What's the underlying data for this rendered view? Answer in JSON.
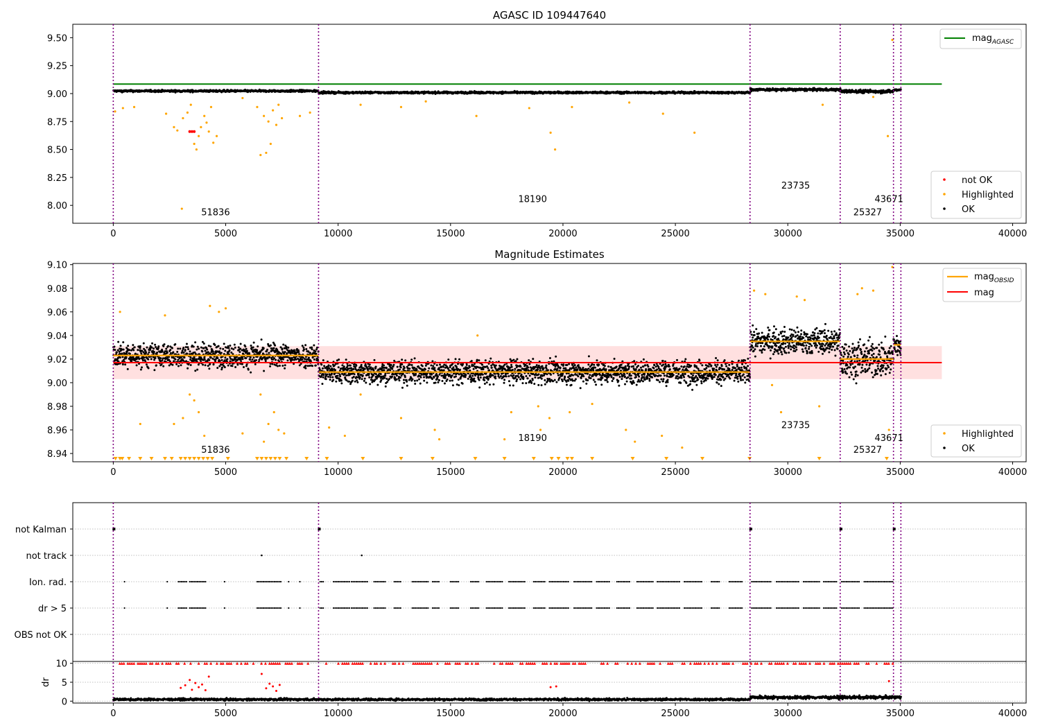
{
  "chart_data": [
    {
      "type": "scatter",
      "title": "AGASC ID 109447640",
      "xlabel": "",
      "ylabel": "",
      "xlim": [
        -1800,
        40600
      ],
      "ylim": [
        7.84,
        9.62
      ],
      "xticks": [
        0,
        5000,
        10000,
        15000,
        20000,
        25000,
        30000,
        35000,
        40000
      ],
      "yticks": [
        8.0,
        8.25,
        8.5,
        8.75,
        9.0,
        9.25,
        9.5
      ],
      "ytick_labels": [
        "8.00",
        "8.25",
        "8.50",
        "8.75",
        "9.00",
        "9.25",
        "9.50"
      ],
      "obsid_boundaries": [
        0,
        9130,
        28320,
        32330,
        34700,
        35030
      ],
      "obsid_labels": [
        {
          "text": "51836",
          "x": 4550,
          "y": 7.91
        },
        {
          "text": "18190",
          "x": 18650,
          "y": 8.03
        },
        {
          "text": "23735",
          "x": 30350,
          "y": 8.15
        },
        {
          "text": "25327",
          "x": 33550,
          "y": 7.91
        },
        {
          "text": "43671",
          "x": 34500,
          "y": 8.03
        }
      ],
      "lines": [
        {
          "name": "mag_AGASC",
          "color": "#008000",
          "y": 9.085,
          "x_range": [
            0,
            36850
          ]
        }
      ],
      "series": [
        {
          "name": "OK",
          "color": "#000000",
          "segments": [
            {
              "x": [
                0,
                9130
              ],
              "mean": 9.023,
              "spread": 0.012
            },
            {
              "x": [
                9130,
                28320
              ],
              "mean": 9.009,
              "spread": 0.012
            },
            {
              "x": [
                28320,
                32330
              ],
              "mean": 9.035,
              "spread": 0.015
            },
            {
              "x": [
                32330,
                34700
              ],
              "mean": 9.02,
              "spread": 0.02
            },
            {
              "x": [
                34700,
                35030
              ],
              "mean": 9.032,
              "spread": 0.015
            }
          ]
        },
        {
          "name": "Highlighted",
          "color": "#ffa500",
          "points": [
            [
              80,
              8.84
            ],
            [
              430,
              8.87
            ],
            [
              930,
              8.88
            ],
            [
              2350,
              8.82
            ],
            [
              2700,
              8.7
            ],
            [
              2850,
              8.67
            ],
            [
              3050,
              7.97
            ],
            [
              3100,
              8.78
            ],
            [
              3300,
              8.83
            ],
            [
              3450,
              8.9
            ],
            [
              3600,
              8.55
            ],
            [
              3700,
              8.5
            ],
            [
              3800,
              8.62
            ],
            [
              3900,
              8.7
            ],
            [
              4050,
              8.8
            ],
            [
              4150,
              8.74
            ],
            [
              4250,
              8.66
            ],
            [
              4350,
              8.88
            ],
            [
              4450,
              8.56
            ],
            [
              4600,
              8.62
            ],
            [
              5750,
              8.96
            ],
            [
              6400,
              8.88
            ],
            [
              6550,
              8.45
            ],
            [
              6700,
              8.8
            ],
            [
              6800,
              8.47
            ],
            [
              6900,
              8.75
            ],
            [
              7000,
              8.55
            ],
            [
              7100,
              8.85
            ],
            [
              7250,
              8.72
            ],
            [
              7350,
              8.9
            ],
            [
              7500,
              8.78
            ],
            [
              8300,
              8.8
            ],
            [
              8750,
              8.83
            ],
            [
              11000,
              8.9
            ],
            [
              12800,
              8.88
            ],
            [
              13900,
              8.93
            ],
            [
              16150,
              8.8
            ],
            [
              18500,
              8.87
            ],
            [
              19450,
              8.65
            ],
            [
              19650,
              8.5
            ],
            [
              20400,
              8.88
            ],
            [
              22950,
              8.92
            ],
            [
              24450,
              8.82
            ],
            [
              25850,
              8.65
            ],
            [
              31550,
              8.9
            ],
            [
              33800,
              8.97
            ],
            [
              34450,
              8.62
            ],
            [
              34650,
              9.48
            ]
          ]
        },
        {
          "name": "not OK",
          "color": "#ff0000",
          "points": [
            [
              3400,
              8.66
            ],
            [
              3500,
              8.66
            ],
            [
              3600,
              8.66
            ]
          ]
        }
      ],
      "legend": {
        "upper_entries": [
          "mag_AGASC"
        ],
        "lower_entries": [
          "not OK",
          "Highlighted",
          "OK"
        ],
        "upper_loc": "upper right",
        "lower_loc": "lower right"
      }
    },
    {
      "type": "scatter",
      "title": "Magnitude Estimates",
      "xlabel": "",
      "ylabel": "",
      "xlim": [
        -1800,
        40600
      ],
      "ylim": [
        8.933,
        9.101
      ],
      "xticks": [
        0,
        5000,
        10000,
        15000,
        20000,
        25000,
        30000,
        35000,
        40000
      ],
      "yticks": [
        8.94,
        8.96,
        8.98,
        9.0,
        9.02,
        9.04,
        9.06,
        9.08,
        9.1
      ],
      "ytick_labels": [
        "8.94",
        "8.96",
        "8.98",
        "9.00",
        "9.02",
        "9.04",
        "9.06",
        "9.08",
        "9.10"
      ],
      "obsid_boundaries": [
        0,
        9130,
        28320,
        32330,
        34700,
        35030
      ],
      "obsid_labels": [
        {
          "text": "51836",
          "x": 4550,
          "y": 8.9405
        },
        {
          "text": "18190",
          "x": 18650,
          "y": 8.9505
        },
        {
          "text": "23735",
          "x": 30350,
          "y": 8.9615
        },
        {
          "text": "25327",
          "x": 33550,
          "y": 8.9405
        },
        {
          "text": "43671",
          "x": 34500,
          "y": 8.9505
        }
      ],
      "mag": {
        "value": 9.017,
        "band": [
          9.003,
          9.031
        ],
        "x_range": [
          0,
          36850
        ],
        "color": "#ff0000"
      },
      "mag_obsid": [
        {
          "x": [
            0,
            9130
          ],
          "value": 9.023
        },
        {
          "x": [
            9130,
            28320
          ],
          "value": 9.009
        },
        {
          "x": [
            28320,
            32330
          ],
          "value": 9.035
        },
        {
          "x": [
            32330,
            34700
          ],
          "value": 9.02
        },
        {
          "x": [
            34700,
            35030
          ],
          "value": 9.032
        }
      ],
      "series": [
        {
          "name": "OK",
          "color": "#000000",
          "segments": [
            {
              "x": [
                0,
                9130
              ],
              "mean": 9.023,
              "spread": 0.013
            },
            {
              "x": [
                9130,
                28320
              ],
              "mean": 9.009,
              "spread": 0.013
            },
            {
              "x": [
                28320,
                32330
              ],
              "mean": 9.035,
              "spread": 0.014
            },
            {
              "x": [
                32330,
                34700
              ],
              "mean": 9.02,
              "spread": 0.02
            },
            {
              "x": [
                34700,
                35030
              ],
              "mean": 9.032,
              "spread": 0.014
            }
          ]
        },
        {
          "name": "Highlighted",
          "color": "#ffa500",
          "points": [
            [
              300,
              9.06
            ],
            [
              1200,
              8.965
            ],
            [
              2300,
              9.057
            ],
            [
              2700,
              8.965
            ],
            [
              3100,
              8.97
            ],
            [
              3400,
              8.99
            ],
            [
              3600,
              8.985
            ],
            [
              3800,
              8.975
            ],
            [
              4050,
              8.955
            ],
            [
              4300,
              9.065
            ],
            [
              4700,
              9.06
            ],
            [
              5000,
              9.063
            ],
            [
              5750,
              8.957
            ],
            [
              6550,
              8.99
            ],
            [
              6700,
              8.95
            ],
            [
              6900,
              8.965
            ],
            [
              7150,
              8.975
            ],
            [
              7350,
              8.96
            ],
            [
              7600,
              8.957
            ],
            [
              9600,
              8.962
            ],
            [
              10300,
              8.955
            ],
            [
              11000,
              8.99
            ],
            [
              12800,
              8.97
            ],
            [
              14300,
              8.96
            ],
            [
              14500,
              8.952
            ],
            [
              16200,
              9.04
            ],
            [
              17400,
              8.952
            ],
            [
              17700,
              8.975
            ],
            [
              18900,
              8.98
            ],
            [
              19000,
              8.96
            ],
            [
              19400,
              8.97
            ],
            [
              20300,
              8.975
            ],
            [
              21300,
              8.982
            ],
            [
              22800,
              8.96
            ],
            [
              23200,
              8.95
            ],
            [
              24400,
              8.955
            ],
            [
              25300,
              8.945
            ],
            [
              28500,
              9.078
            ],
            [
              29000,
              9.075
            ],
            [
              29300,
              8.998
            ],
            [
              29700,
              8.975
            ],
            [
              30400,
              9.073
            ],
            [
              30750,
              9.07
            ],
            [
              31400,
              8.98
            ],
            [
              33100,
              9.075
            ],
            [
              33300,
              9.08
            ],
            [
              33800,
              9.078
            ],
            [
              34650,
              9.098
            ],
            [
              34500,
              8.96
            ]
          ]
        }
      ],
      "markers_at_bottom_x": [
        100,
        300,
        400,
        700,
        1200,
        1700,
        2300,
        2600,
        3000,
        3200,
        3400,
        3600,
        3800,
        4000,
        4200,
        4400,
        5100,
        6400,
        6600,
        6800,
        7000,
        7200,
        7400,
        7700,
        8600,
        9500,
        11100,
        12800,
        14200,
        16100,
        17400,
        18700,
        19500,
        19800,
        20200,
        20400,
        21300,
        23100,
        24600,
        26200,
        28300,
        31400,
        34400
      ],
      "legend": {
        "upper_entries": [
          "mag_OBSID",
          "mag"
        ],
        "lower_entries": [
          "Highlighted",
          "OK"
        ],
        "upper_loc": "upper right",
        "lower_loc": "lower right"
      }
    },
    {
      "type": "scatter",
      "title": "",
      "xlabel": "",
      "ylabel": "",
      "xlim": [
        -1800,
        40600
      ],
      "categories": [
        "not Kalman",
        "not track",
        "Ion. rad.",
        "dr > 5",
        "OBS not OK"
      ],
      "obsid_boundaries": [
        0,
        9130,
        28320,
        32330,
        34700,
        35030
      ],
      "flags": {
        "not Kalman": [
          0,
          9130,
          28320,
          32330,
          34700
        ],
        "not track": [
          6600,
          11050
        ],
        "Ion. rad.": "clustered events 500–34700",
        "dr > 5": "clustered events 500–34700",
        "OBS not OK": []
      }
    },
    {
      "type": "scatter",
      "title": "",
      "xlabel": "",
      "ylabel": "dr",
      "xlim": [
        -1800,
        40600
      ],
      "ylim": [
        -0.5,
        10.5
      ],
      "xticks": [
        0,
        5000,
        10000,
        15000,
        20000,
        25000,
        30000,
        35000,
        40000
      ],
      "yticks": [
        0,
        5,
        10
      ],
      "series": [
        {
          "name": "OK",
          "color": "#000000",
          "segments": [
            {
              "x": [
                0,
                28320
              ],
              "mean": 0.45,
              "spread": 0.35
            },
            {
              "x": [
                28320,
                35030
              ],
              "mean": 1.0,
              "spread": 0.5
            }
          ]
        },
        {
          "name": "not OK",
          "color": "#ff0000",
          "cap": 10,
          "points": [
            [
              3000,
              3.5
            ],
            [
              3200,
              4.2
            ],
            [
              3400,
              5.6
            ],
            [
              3500,
              3.0
            ],
            [
              3650,
              4.8
            ],
            [
              3800,
              3.7
            ],
            [
              3950,
              4.4
            ],
            [
              4100,
              2.9
            ],
            [
              4250,
              6.5
            ],
            [
              6600,
              7.2
            ],
            [
              6800,
              3.4
            ],
            [
              6950,
              4.6
            ],
            [
              7100,
              3.9
            ],
            [
              7250,
              2.7
            ],
            [
              7400,
              4.3
            ],
            [
              19450,
              3.7
            ],
            [
              19700,
              3.9
            ],
            [
              34500,
              5.3
            ]
          ]
        }
      ]
    }
  ]
}
